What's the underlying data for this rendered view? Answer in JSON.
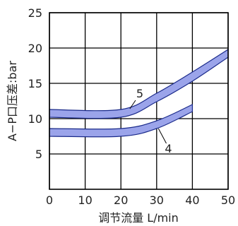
{
  "chart_data": {
    "type": "line",
    "xlabel": "调节流量  L/min",
    "ylabel": "A−P口压差:bar",
    "xlim": [
      0,
      50
    ],
    "ylim": [
      0,
      25
    ],
    "x_ticks": [
      "0",
      "10",
      "20",
      "30",
      "40",
      "50"
    ],
    "y_ticks": [
      "5",
      "10",
      "15",
      "20",
      "25"
    ],
    "grid": true,
    "series_color": "#9ba4ea",
    "series_edge_color": "#1a2a8a",
    "series": [
      {
        "name": "5",
        "x": [
          0,
          20,
          30,
          40,
          50
        ],
        "lower": [
          10.2,
          10.2,
          12.4,
          15.3,
          18.7
        ],
        "upper": [
          11.3,
          11.3,
          13.6,
          16.6,
          19.8
        ]
      },
      {
        "name": "4",
        "x": [
          0,
          20,
          30,
          40
        ],
        "lower": [
          7.5,
          7.5,
          8.6,
          11.0
        ],
        "upper": [
          8.6,
          8.6,
          9.7,
          12.0
        ]
      }
    ]
  }
}
